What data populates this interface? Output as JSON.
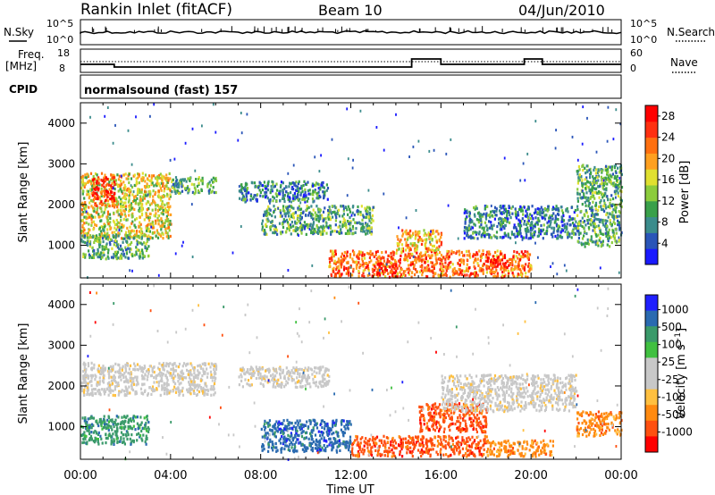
{
  "header": {
    "title": "Rankin Inlet (fitACF)",
    "beam": "Beam 10",
    "date": "04/Jun/2010"
  },
  "top_panels": {
    "nsky_label": "N.Sky",
    "nsky_ticks": [
      "10^5",
      "10^0"
    ],
    "nsearch_label": "N.Search",
    "freq_label_1": "Freq.",
    "freq_label_2": "[MHz]",
    "freq_ticks": [
      "18",
      "8"
    ],
    "nave_ticks": [
      "60",
      "0"
    ],
    "nave_label": "Nave",
    "cpid_label": "CPID",
    "cpid_value": "normalsound (fast) 157"
  },
  "colors": {
    "power_scale": [
      "#1a1aff",
      "#2a55b8",
      "#3b8c8c",
      "#39a04a",
      "#8ccc3c",
      "#e0e030",
      "#ffa020",
      "#ff7010",
      "#ff3010",
      "#ff0000"
    ],
    "velocity_scale": [
      "#ff0000",
      "#ff5010",
      "#ff8a10",
      "#ffc040",
      "#c8c8c8",
      "#c8c8c8",
      "#40c040",
      "#3a9a6a",
      "#2a6ab0",
      "#2020ff"
    ],
    "velocity_gray": "#c8c8c8"
  },
  "chart_data": [
    {
      "type": "heatmap",
      "title": "",
      "ylabel": "Slant Range [km]",
      "xlabel": "",
      "x_ticks": [
        "00:00",
        "04:00",
        "08:00",
        "12:00",
        "16:00",
        "20:00",
        "00:00"
      ],
      "y_ticks": [
        1000,
        2000,
        3000,
        4000
      ],
      "xlim": [
        0,
        24
      ],
      "ylim": [
        200,
        4500
      ],
      "colorbar": {
        "label": "Power [dB]",
        "ticks": [
          4,
          8,
          12,
          16,
          20,
          24,
          28
        ],
        "range": [
          0,
          30
        ]
      },
      "regions": [
        {
          "t": [
            0,
            4
          ],
          "r": [
            1200,
            2800
          ],
          "value": 14
        },
        {
          "t": [
            0.5,
            1.5
          ],
          "r": [
            2000,
            2700
          ],
          "value": 24
        },
        {
          "t": [
            0,
            3
          ],
          "r": [
            700,
            1300
          ],
          "value": 8
        },
        {
          "t": [
            4,
            6
          ],
          "r": [
            2300,
            2700
          ],
          "value": 8
        },
        {
          "t": [
            7,
            11
          ],
          "r": [
            2100,
            2600
          ],
          "value": 6
        },
        {
          "t": [
            8,
            13
          ],
          "r": [
            1300,
            2000
          ],
          "value": 8
        },
        {
          "t": [
            11,
            20
          ],
          "r": [
            250,
            900
          ],
          "value": 20
        },
        {
          "t": [
            13,
            14
          ],
          "r": [
            300,
            600
          ],
          "value": 28
        },
        {
          "t": [
            14,
            16
          ],
          "r": [
            900,
            1400
          ],
          "value": 18
        },
        {
          "t": [
            18,
            19
          ],
          "r": [
            500,
            700
          ],
          "value": 26
        },
        {
          "t": [
            17,
            22
          ],
          "r": [
            1200,
            2000
          ],
          "value": 6
        },
        {
          "t": [
            22,
            24
          ],
          "r": [
            1000,
            3000
          ],
          "value": 8
        }
      ]
    },
    {
      "type": "heatmap",
      "title": "",
      "ylabel": "Slant Range [km]",
      "xlabel": "Time UT",
      "x_ticks": [
        "00:00",
        "04:00",
        "08:00",
        "12:00",
        "16:00",
        "20:00",
        "00:00"
      ],
      "y_ticks": [
        1000,
        2000,
        3000,
        4000
      ],
      "xlim": [
        0,
        24
      ],
      "ylim": [
        200,
        4500
      ],
      "colorbar": {
        "label": "Velocity [m s^-1]",
        "ticks": [
          "1000",
          "500",
          "100",
          "25",
          "-25",
          "-100",
          "-500",
          "-1000"
        ]
      },
      "regions": [
        {
          "t": [
            0,
            6
          ],
          "r": [
            1800,
            2600
          ],
          "value": "gray"
        },
        {
          "t": [
            0,
            3
          ],
          "r": [
            600,
            1300
          ],
          "value": 100
        },
        {
          "t": [
            7,
            11
          ],
          "r": [
            2000,
            2500
          ],
          "value": "gray"
        },
        {
          "t": [
            8,
            12
          ],
          "r": [
            400,
            1200
          ],
          "value": 500
        },
        {
          "t": [
            12,
            18
          ],
          "r": [
            300,
            800
          ],
          "value": -500
        },
        {
          "t": [
            15,
            18
          ],
          "r": [
            900,
            1600
          ],
          "value": -500
        },
        {
          "t": [
            16,
            22
          ],
          "r": [
            1400,
            2300
          ],
          "value": "gray"
        },
        {
          "t": [
            18,
            21
          ],
          "r": [
            300,
            700
          ],
          "value": -100
        },
        {
          "t": [
            22,
            24
          ],
          "r": [
            800,
            1400
          ],
          "value": -100
        }
      ]
    }
  ]
}
